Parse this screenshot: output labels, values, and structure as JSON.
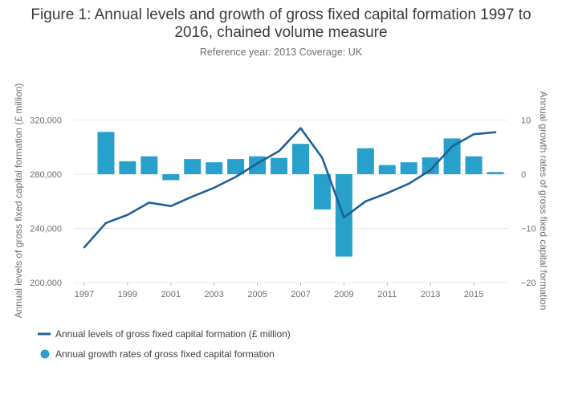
{
  "chart_data": {
    "type": "bar+line",
    "title_line1": "Figure 1: Annual levels and growth of gross fixed capital formation 1997 to",
    "title_line2": "2016, chained volume measure",
    "subtitle": "Reference year: 2013 Coverage: UK",
    "y_left_label": "Annual levels of gross fixed capital formation (£ million)",
    "y_right_label": "Annual growth rates of gross fixed capital formation",
    "y_left_lim": [
      200000,
      330000
    ],
    "y_right_lim": [
      -20,
      12
    ],
    "y_left_ticks": [
      200000,
      240000,
      280000,
      320000
    ],
    "y_left_tick_labels": [
      "200,000",
      "240,000",
      "280,000",
      "320,000"
    ],
    "y_right_ticks": [
      -20,
      -10,
      0,
      10
    ],
    "y_right_tick_labels": [
      "−20",
      "−10",
      "0",
      "10"
    ],
    "x_ticks": [
      "1997",
      "1999",
      "2001",
      "2003",
      "2005",
      "2007",
      "2009",
      "2011",
      "2013",
      "2015"
    ],
    "x": [
      1997,
      1998,
      1999,
      2000,
      2001,
      2002,
      2003,
      2004,
      2005,
      2006,
      2007,
      2008,
      2009,
      2010,
      2011,
      2012,
      2013,
      2014,
      2015,
      2016
    ],
    "series": [
      {
        "name": "Annual levels of gross fixed capital formation (£ million)",
        "type": "line",
        "axis": "left",
        "color": "#206095",
        "values": [
          226000,
          244000,
          250000,
          259000,
          256500,
          263500,
          270000,
          278000,
          288000,
          297000,
          314000,
          292000,
          248000,
          260000,
          266000,
          273000,
          283000,
          300500,
          309500,
          311000
        ]
      },
      {
        "name": "Annual growth rates of gross fixed capital formation",
        "type": "bar",
        "axis": "right",
        "color": "#27a0cc",
        "values": [
          null,
          7.8,
          2.4,
          3.3,
          -1.1,
          2.8,
          2.2,
          2.8,
          3.3,
          3.0,
          5.6,
          -6.5,
          -15.2,
          4.8,
          1.7,
          2.2,
          3.1,
          6.6,
          3.3,
          0.4
        ]
      }
    ],
    "legend_position": "bottom-left",
    "grid": true
  }
}
